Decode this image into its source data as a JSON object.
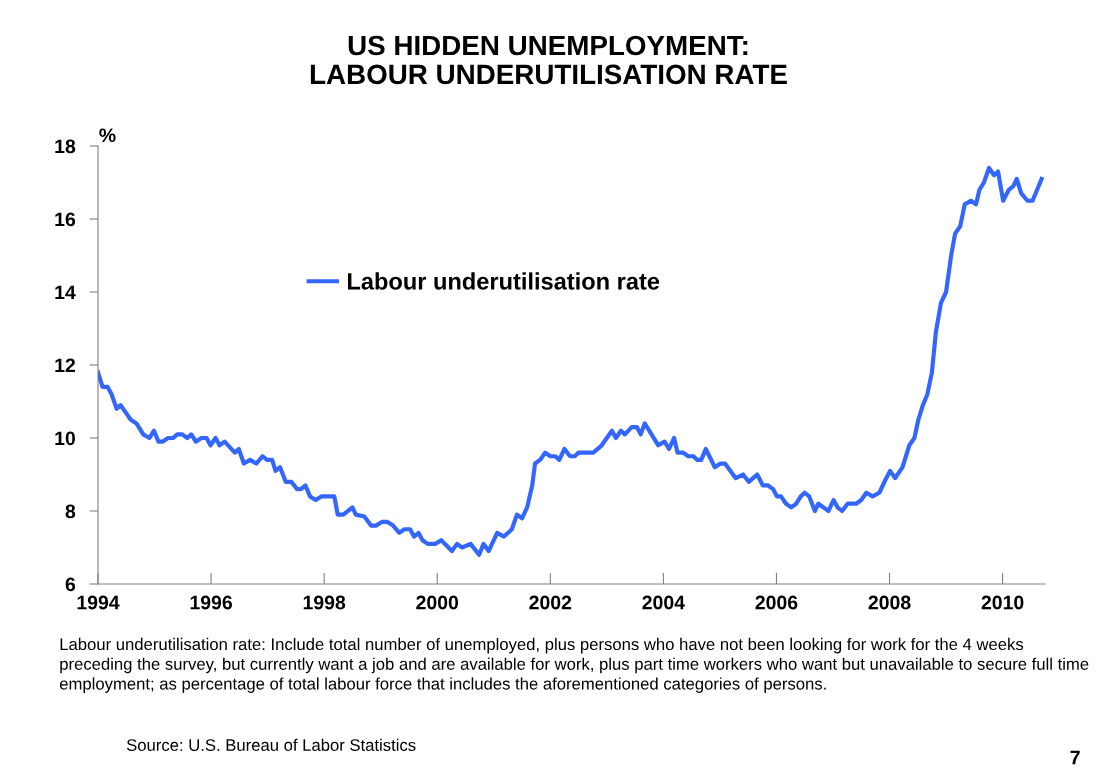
{
  "chart_data": {
    "type": "line",
    "title": "US HIDDEN UNEMPLOYMENT:\nLABOUR UNDERUTILISATION RATE",
    "ylabel": "%",
    "series": [
      {
        "name": "Labour underutilisation rate",
        "color": "#3366ff",
        "x": [
          1994.0,
          1994.08,
          1994.17,
          1994.24,
          1994.33,
          1994.4,
          1994.58,
          1994.68,
          1994.8,
          1994.91,
          1994.99,
          1995.07,
          1995.14,
          1995.24,
          1995.33,
          1995.4,
          1995.49,
          1995.58,
          1995.65,
          1995.73,
          1995.83,
          1995.92,
          1995.99,
          1996.08,
          1996.15,
          1996.24,
          1996.33,
          1996.42,
          1996.49,
          1996.58,
          1996.69,
          1996.8,
          1996.91,
          1996.99,
          1997.08,
          1997.14,
          1997.22,
          1997.32,
          1997.42,
          1997.52,
          1997.59,
          1997.67,
          1997.75,
          1997.85,
          1997.95,
          1998.18,
          1998.24,
          1998.34,
          1998.5,
          1998.56,
          1998.71,
          1998.83,
          1998.92,
          1999.02,
          1999.12,
          1999.22,
          1999.33,
          1999.42,
          1999.52,
          1999.59,
          1999.67,
          1999.74,
          1999.83,
          1999.97,
          2000.07,
          2000.2,
          2000.26,
          2000.35,
          2000.44,
          2000.59,
          2000.74,
          2000.82,
          2000.91,
          2001.06,
          2001.18,
          2001.32,
          2001.41,
          2001.5,
          2001.59,
          2001.68,
          2001.73,
          2001.82,
          2001.91,
          2002.0,
          2002.09,
          2002.16,
          2002.25,
          2002.35,
          2002.43,
          2002.5,
          2002.76,
          2002.91,
          2003.0,
          2003.09,
          2003.16,
          2003.25,
          2003.32,
          2003.44,
          2003.53,
          2003.6,
          2003.67,
          2003.79,
          2003.91,
          2004.02,
          2004.1,
          2004.19,
          2004.25,
          2004.35,
          2004.44,
          2004.53,
          2004.6,
          2004.67,
          2004.75,
          2004.91,
          2005.01,
          2005.09,
          2005.28,
          2005.41,
          2005.51,
          2005.66,
          2005.76,
          2005.85,
          2005.94,
          2006.01,
          2006.08,
          2006.17,
          2006.26,
          2006.35,
          2006.43,
          2006.5,
          2006.58,
          2006.68,
          2006.74,
          2006.92,
          2007.01,
          2007.08,
          2007.16,
          2007.26,
          2007.41,
          2007.5,
          2007.59,
          2007.7,
          2007.82,
          2007.91,
          2008.01,
          2008.1,
          2008.23,
          2008.35,
          2008.44,
          2008.51,
          2008.59,
          2008.67,
          2008.75,
          2008.82,
          2008.91,
          2009.0,
          2009.09,
          2009.16,
          2009.25,
          2009.33,
          2009.44,
          2009.53,
          2009.59,
          2009.67,
          2009.76,
          2009.85,
          2009.92,
          2010.01,
          2010.11,
          2010.19,
          2010.25,
          2010.33,
          2010.44,
          2010.53,
          2010.69
        ],
        "values": [
          11.8,
          11.4,
          11.4,
          11.2,
          10.8,
          10.9,
          10.5,
          10.4,
          10.1,
          10.0,
          10.2,
          9.9,
          9.9,
          10.0,
          10.0,
          10.1,
          10.1,
          10.0,
          10.1,
          9.9,
          10.0,
          10.0,
          9.8,
          10.0,
          9.8,
          9.9,
          9.75,
          9.6,
          9.7,
          9.3,
          9.4,
          9.3,
          9.5,
          9.4,
          9.4,
          9.1,
          9.2,
          8.8,
          8.8,
          8.6,
          8.6,
          8.7,
          8.4,
          8.3,
          8.4,
          8.4,
          7.9,
          7.9,
          8.1,
          7.9,
          7.85,
          7.6,
          7.6,
          7.7,
          7.7,
          7.6,
          7.4,
          7.5,
          7.5,
          7.3,
          7.4,
          7.2,
          7.1,
          7.1,
          7.2,
          7.0,
          6.9,
          7.1,
          7.0,
          7.1,
          6.8,
          7.1,
          6.9,
          7.4,
          7.3,
          7.5,
          7.9,
          7.8,
          8.1,
          8.7,
          9.3,
          9.4,
          9.6,
          9.5,
          9.5,
          9.4,
          9.7,
          9.5,
          9.5,
          9.6,
          9.6,
          9.8,
          10.0,
          10.2,
          10.0,
          10.2,
          10.1,
          10.3,
          10.3,
          10.1,
          10.4,
          10.1,
          9.8,
          9.9,
          9.7,
          10.0,
          9.6,
          9.6,
          9.5,
          9.5,
          9.4,
          9.4,
          9.7,
          9.2,
          9.3,
          9.3,
          8.9,
          9.0,
          8.8,
          9.0,
          8.7,
          8.7,
          8.6,
          8.4,
          8.4,
          8.2,
          8.1,
          8.2,
          8.4,
          8.5,
          8.4,
          8.0,
          8.2,
          8.0,
          8.3,
          8.1,
          8.0,
          8.2,
          8.2,
          8.3,
          8.5,
          8.4,
          8.5,
          8.8,
          9.1,
          8.9,
          9.2,
          9.8,
          10.0,
          10.5,
          10.9,
          11.2,
          11.8,
          12.9,
          13.7,
          14.0,
          15.0,
          15.6,
          15.8,
          16.4,
          16.5,
          16.4,
          16.8,
          17.0,
          17.4,
          17.2,
          17.3,
          16.5,
          16.8,
          16.9,
          17.1,
          16.7,
          16.5,
          16.5,
          17.1
        ]
      }
    ],
    "xlim": [
      1994,
      2010.75
    ],
    "xticks": [
      1994,
      1996,
      1998,
      2000,
      2002,
      2004,
      2006,
      2008,
      2010
    ],
    "ylim": [
      6,
      18
    ],
    "yticks": [
      6,
      8,
      10,
      12,
      14,
      16,
      18
    ],
    "grid": false,
    "legend": "upper left",
    "marker": "none",
    "line_style": "solid",
    "annotations": [
      "Labour underutilisation rate: Include total number of unemployed, plus persons who have not been looking for work for the 4 weeks preceding the survey, but currently want a job and are available for work, plus part time workers who want but unavailable to secure full time employment; as percentage of total labour force that includes the aforementioned categories of persons.",
      "Source: U.S. Bureau of Labor Statistics",
      "7"
    ]
  }
}
